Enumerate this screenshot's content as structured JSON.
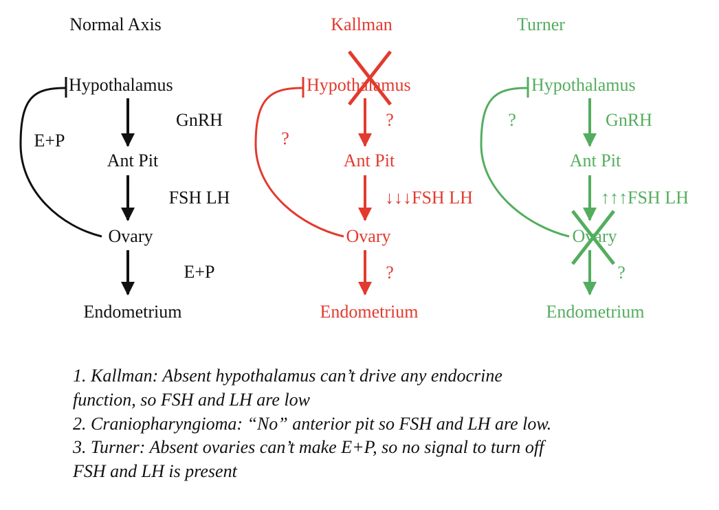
{
  "colors": {
    "normal": "#111111",
    "kallman": "#e23a2e",
    "turner": "#53ad5e"
  },
  "columns": {
    "normal": {
      "title": "Normal Axis",
      "hypothalamus": "Hypothalamus",
      "ant_pit": "Ant Pit",
      "ovary": "Ovary",
      "endometrium": "Endometrium",
      "label_gnrh": "GnRH",
      "label_fsh_lh": "FSH LH",
      "label_ep_down": "E+P",
      "label_feedback": "E+P"
    },
    "kallman": {
      "title": "Kallman",
      "hypothalamus": "Hypothalamus",
      "ant_pit": "Ant Pit",
      "ovary": "Ovary",
      "endometrium": "Endometrium",
      "label_gnrh": "?",
      "label_fsh_lh": "↓↓↓FSH LH",
      "label_ep_down": "?",
      "label_feedback": "?"
    },
    "turner": {
      "title": "Turner",
      "hypothalamus": "Hypothalamus",
      "ant_pit": "Ant Pit",
      "ovary": "Ovary",
      "endometrium": "Endometrium",
      "label_gnrh": "GnRH",
      "label_fsh_lh": "↑↑↑FSH LH",
      "label_ep_down": "?",
      "label_feedback": "?"
    }
  },
  "notes": [
    "1. Kallman: Absent hypothalamus can’t drive any endocrine",
    "function, so FSH and LH are low",
    "2. Craniopharyngioma: “No” anterior pit so FSH and LH are low.",
    "3. Turner: Absent ovaries can’t make E+P, so no signal to turn off",
    "FSH and LH is present"
  ]
}
